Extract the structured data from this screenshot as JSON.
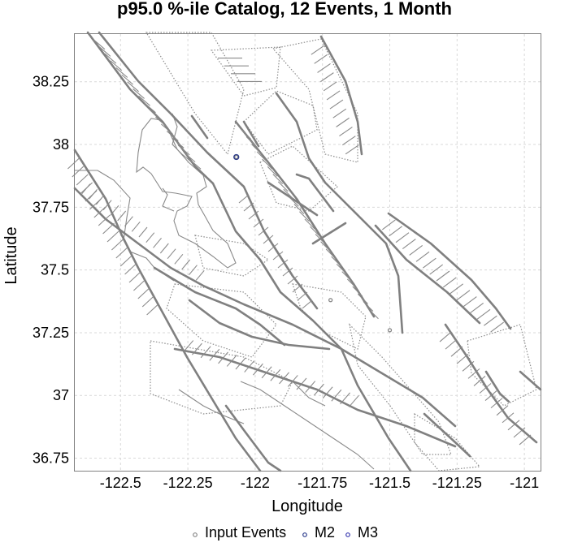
{
  "chart_data": {
    "type": "scatter",
    "title": "p95.0 %-ile Catalog, 12 Events, 1 Month",
    "xlabel": "Longitude",
    "ylabel": "Latitude",
    "xlim": [
      -122.67,
      -120.94
    ],
    "ylim": [
      36.7,
      38.44
    ],
    "x_ticks": [
      -122.5,
      -122.25,
      -122,
      -121.75,
      -121.5,
      -121.25,
      -121
    ],
    "x_tick_labels": [
      "-122.5",
      "-122.25",
      "-122",
      "-121.75",
      "-121.5",
      "-121.25",
      "-121"
    ],
    "y_ticks": [
      36.75,
      37,
      37.25,
      37.5,
      37.75,
      38,
      38.25
    ],
    "y_tick_labels": [
      "36.75",
      "37",
      "37.25",
      "37.5",
      "37.75",
      "38",
      "38.25"
    ],
    "grid": true,
    "legend_position": "bottom",
    "series": [
      {
        "name": "Input Events",
        "color": "#888888",
        "points": [
          [
            -122.07,
            37.95
          ],
          [
            -121.5,
            37.26
          ],
          [
            -121.72,
            37.38
          ]
        ]
      },
      {
        "name": "M2",
        "color": "#2b3b8c",
        "points": [
          [
            -122.07,
            37.95
          ]
        ]
      },
      {
        "name": "M3",
        "color": "#3a3ab0",
        "points": []
      }
    ]
  }
}
